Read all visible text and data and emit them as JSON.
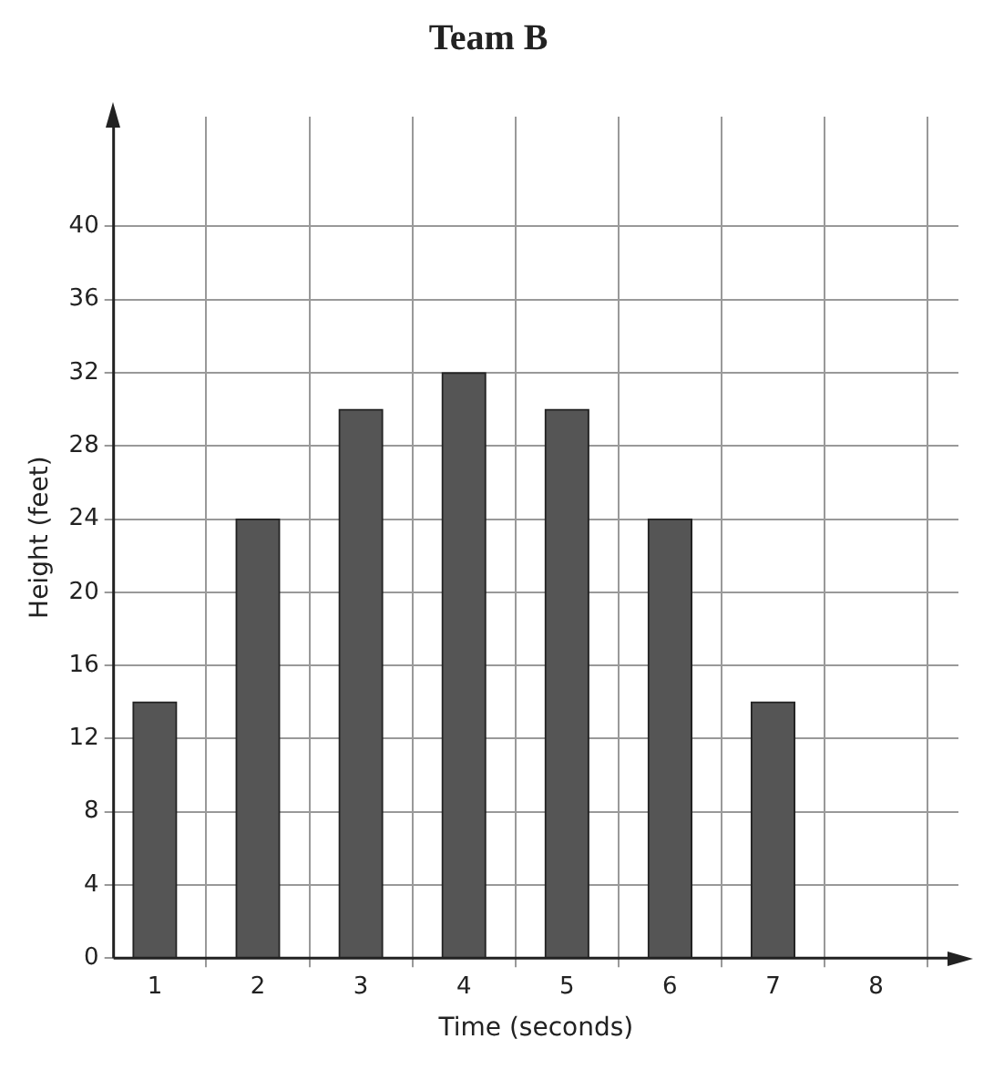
{
  "chart_data": {
    "type": "bar",
    "title": "Team B",
    "xlabel": "Time (seconds)",
    "ylabel": "Height (feet)",
    "x": [
      1,
      2,
      3,
      4,
      5,
      6,
      7
    ],
    "values": [
      14,
      24,
      30,
      32,
      30,
      24,
      14
    ],
    "color": "#555555",
    "xlim": [
      0.6,
      8.8
    ],
    "xticks": [
      1,
      2,
      3,
      4,
      5,
      6,
      7,
      8
    ],
    "ylim": [
      0,
      46
    ],
    "yticks": [
      0,
      4,
      8,
      12,
      16,
      20,
      24,
      28,
      32,
      36,
      40
    ],
    "grid": true
  }
}
